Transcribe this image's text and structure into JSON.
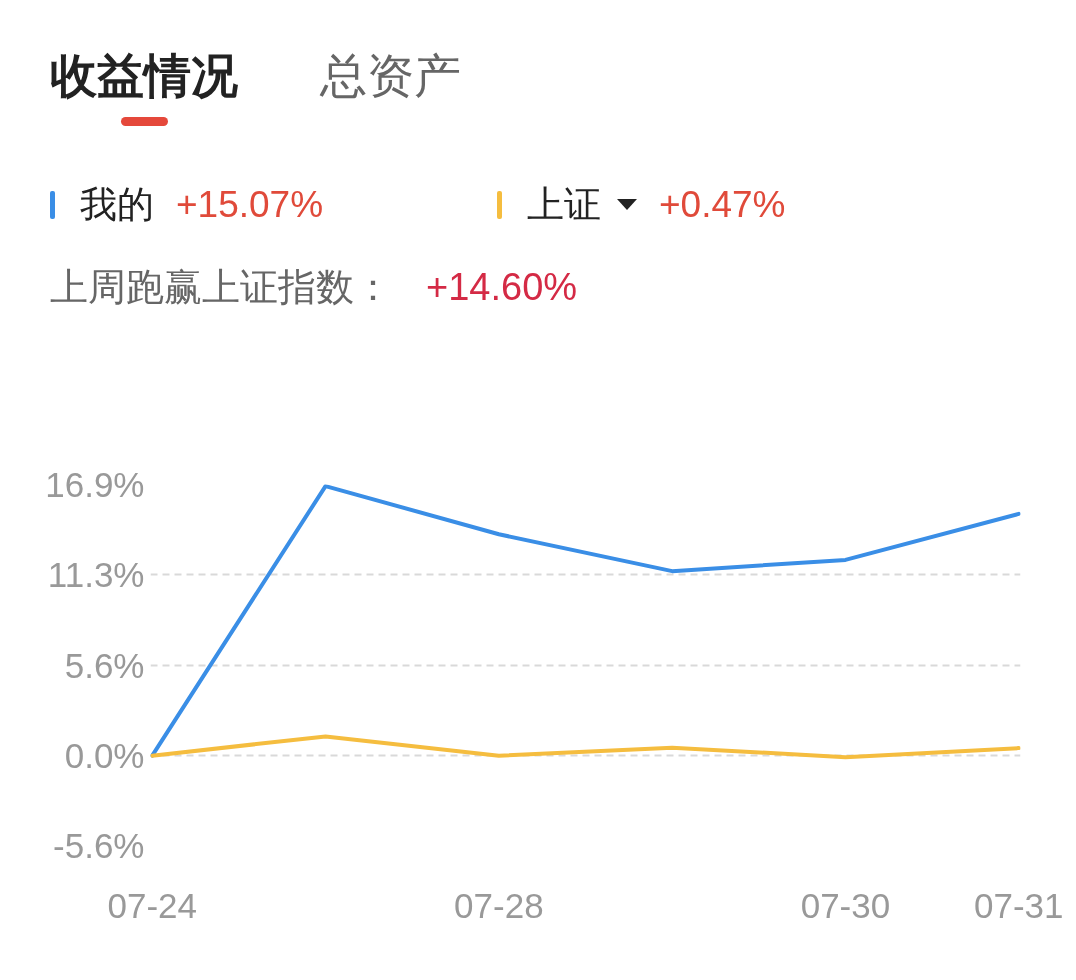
{
  "chart_data": {
    "type": "line",
    "title": "收益情况",
    "categories": [
      "07-24",
      null,
      "07-28",
      null,
      "07-30",
      "07-31"
    ],
    "series": [
      {
        "name": "我的",
        "color": "#3a8ee6",
        "values": [
          0,
          16.8,
          13.8,
          11.5,
          12.2,
          15.07
        ]
      },
      {
        "name": "上证",
        "color": "#f5bd3f",
        "values": [
          0,
          1.2,
          0,
          0.5,
          -0.1,
          0.47
        ]
      }
    ],
    "ylim": [
      -5.6,
      16.9
    ],
    "yticks": [
      {
        "value": -5.6,
        "label": "-5.6%"
      },
      {
        "value": 0,
        "label": "0.0%"
      },
      {
        "value": 5.6,
        "label": "5.6%"
      },
      {
        "value": 11.3,
        "label": "11.3%"
      },
      {
        "value": 16.9,
        "label": "16.9%"
      }
    ],
    "grid": "y",
    "legend": "top",
    "line_style": "solid",
    "annotations": [
      "总资产",
      "+15.07%",
      "+0.47%",
      "上周跑赢上证指数：",
      "+14.60%"
    ]
  }
}
